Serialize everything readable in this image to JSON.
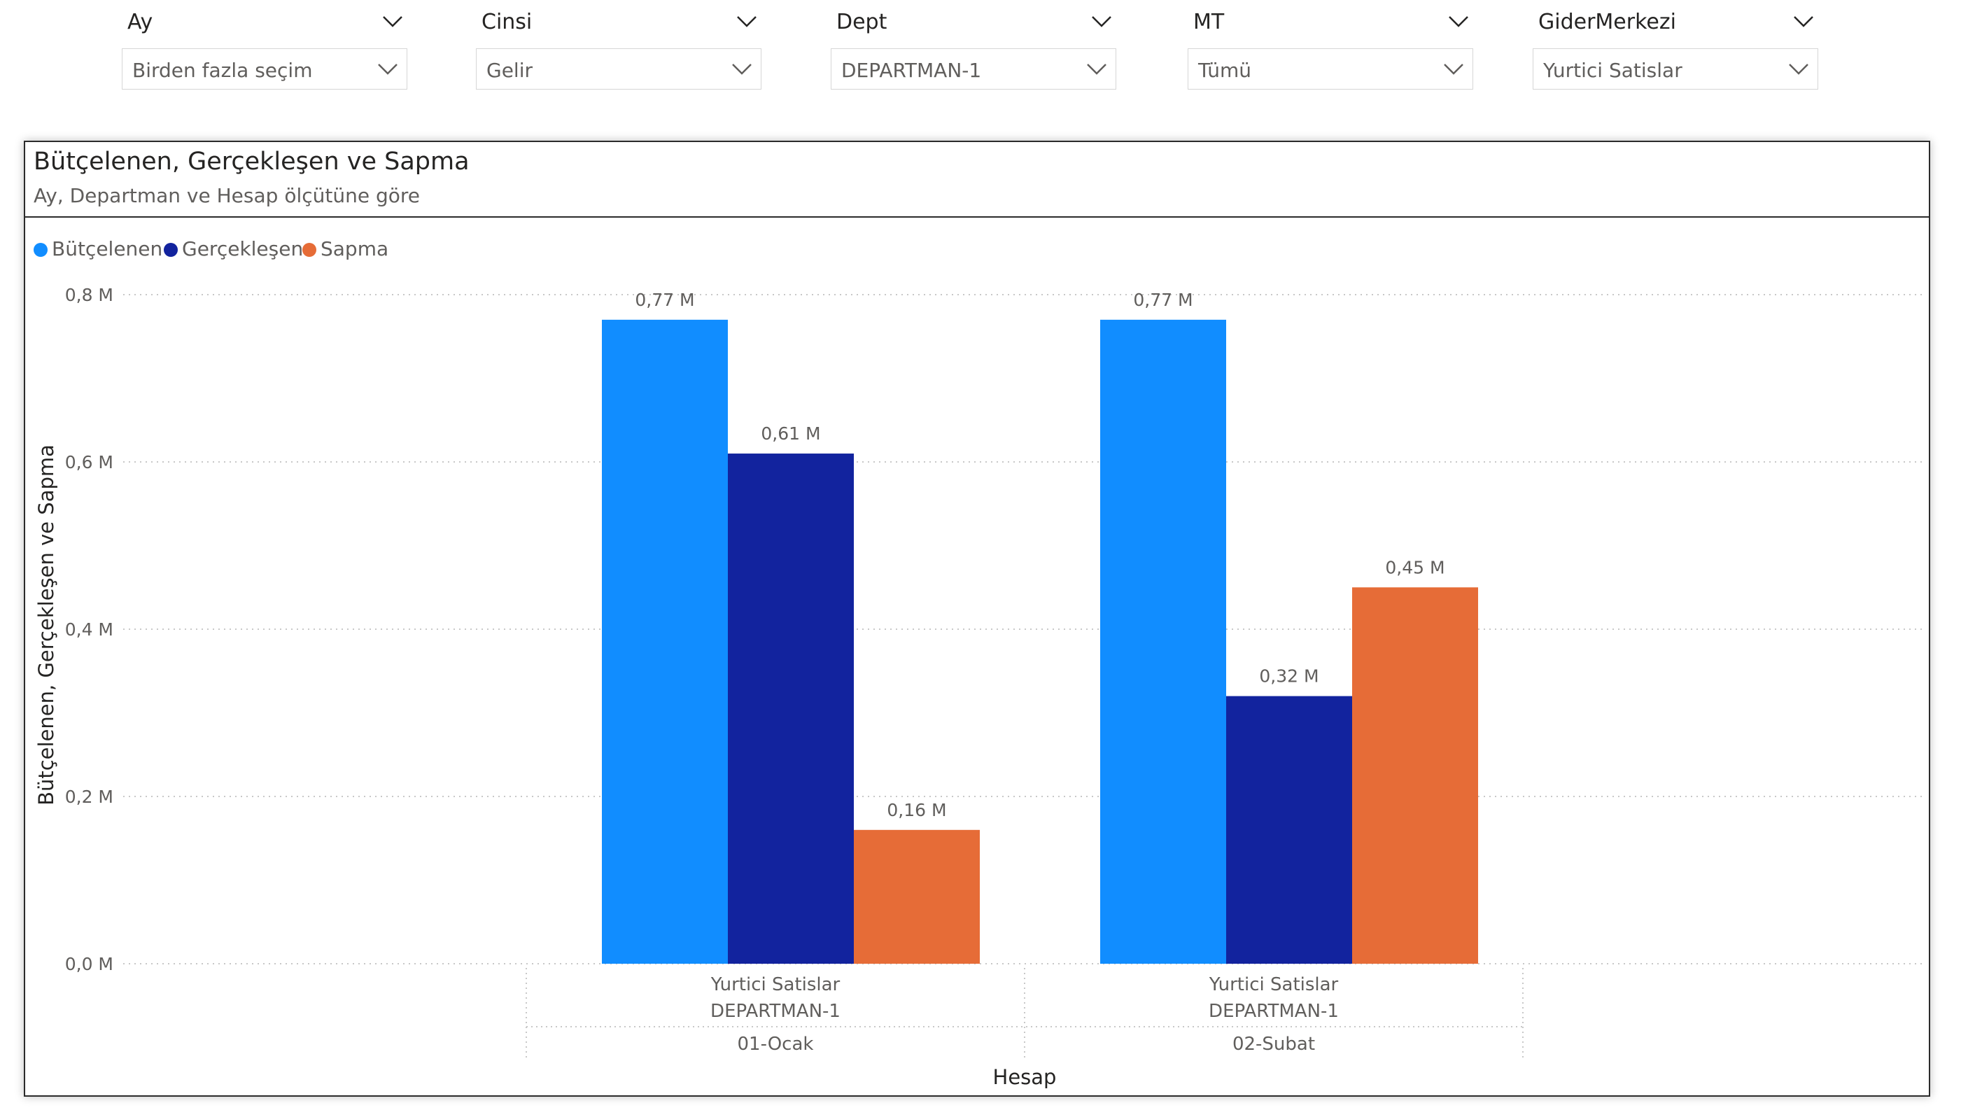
{
  "slicers": [
    {
      "title": "Ay",
      "value": "Birden fazla seçim"
    },
    {
      "title": "Cinsi",
      "value": "Gelir"
    },
    {
      "title": "Dept",
      "value": "DEPARTMAN-1"
    },
    {
      "title": "MT",
      "value": "Tümü"
    },
    {
      "title": "GiderMerkezi",
      "value": "Yurtici Satislar"
    }
  ],
  "icons": {
    "slicer_header": "chevron-down-icon",
    "slicer_dropdown": "chevron-down-icon"
  },
  "visual": {
    "title": "Bütçelenen, Gerçekleşen ve Sapma",
    "subtitle": "Ay, Departman ve Hesap ölçütüne göre"
  },
  "chart_data": {
    "type": "bar",
    "title": "Bütçelenen, Gerçekleşen ve Sapma",
    "subtitle": "Ay, Departman ve Hesap ölçütüne göre",
    "xlabel": "Hesap",
    "ylabel": "Bütçelenen, Gerçekleşen ve Sapma",
    "ylim": [
      0,
      0.8
    ],
    "yticks": [
      "0,0 M",
      "0,2 M",
      "0,4 M",
      "0,6 M",
      "0,8 M"
    ],
    "ytick_values": [
      0,
      0.2,
      0.4,
      0.6,
      0.8
    ],
    "grid": true,
    "legend_position": "top-left",
    "categories": [
      {
        "hesap": "Yurtici Satislar",
        "departman": "DEPARTMAN-1",
        "ay": "01-Ocak"
      },
      {
        "hesap": "Yurtici Satislar",
        "departman": "DEPARTMAN-1",
        "ay": "02-Subat"
      }
    ],
    "series": [
      {
        "name": "Bütçelenen",
        "color": "#118DFF",
        "values": [
          0.77,
          0.77
        ],
        "labels": [
          "0,77 M",
          "0,77 M"
        ]
      },
      {
        "name": "Gerçekleşen",
        "color": "#12239E",
        "values": [
          0.61,
          0.32
        ],
        "labels": [
          "0,61 M",
          "0,32 M"
        ]
      },
      {
        "name": "Sapma",
        "color": "#E66C37",
        "values": [
          0.16,
          0.45
        ],
        "labels": [
          "0,16 M",
          "0,45 M"
        ]
      }
    ]
  }
}
